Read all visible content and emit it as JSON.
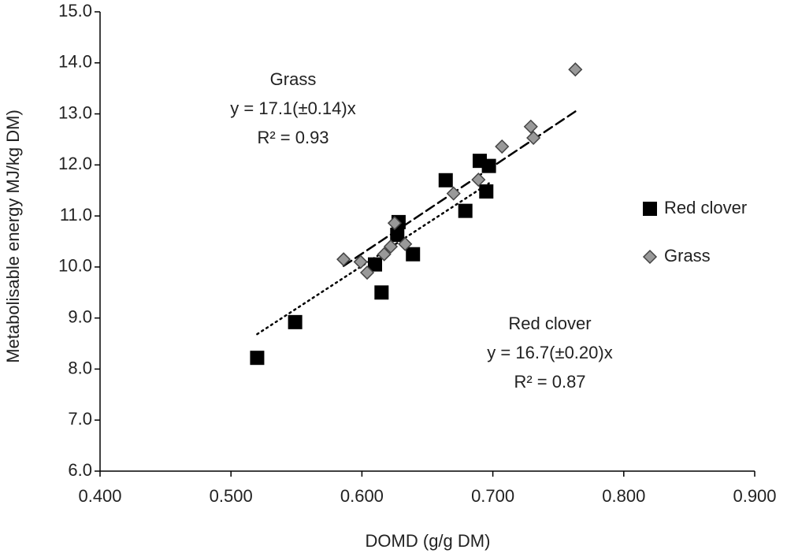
{
  "chart_data": {
    "type": "scatter",
    "x_label": "DOMD (g/g DM)",
    "y_label": "Metabolisable energy MJ/kg DM)",
    "xlim": [
      0.4,
      0.9
    ],
    "ylim": [
      6,
      15
    ],
    "xticks": [
      {
        "value": 0.4,
        "label": "0.400"
      },
      {
        "value": 0.5,
        "label": "0.500"
      },
      {
        "value": 0.6,
        "label": "0.600"
      },
      {
        "value": 0.7,
        "label": "0.700"
      },
      {
        "value": 0.8,
        "label": "0.800"
      },
      {
        "value": 0.9,
        "label": "0.900"
      }
    ],
    "yticks": [
      {
        "value": 6,
        "label": "6.0"
      },
      {
        "value": 7,
        "label": "7.0"
      },
      {
        "value": 8,
        "label": "8.0"
      },
      {
        "value": 9,
        "label": "9.0"
      },
      {
        "value": 10,
        "label": "10.0"
      },
      {
        "value": 11,
        "label": "11.0"
      },
      {
        "value": 12,
        "label": "12.0"
      },
      {
        "value": 13,
        "label": "13.0"
      },
      {
        "value": 14,
        "label": "14.0"
      },
      {
        "value": 15,
        "label": "15.0"
      }
    ],
    "grid": false,
    "series": [
      {
        "name": "Red clover",
        "marker": "square",
        "color": "#000000",
        "trend_style": "dotted",
        "slope": 16.7,
        "x": [
          0.52,
          0.549,
          0.61,
          0.615,
          0.628,
          0.627,
          0.639,
          0.664,
          0.679,
          0.69,
          0.695,
          0.697
        ],
        "values": [
          8.22,
          8.92,
          10.05,
          9.5,
          10.88,
          10.63,
          10.25,
          11.7,
          11.1,
          12.08,
          11.48,
          11.98
        ],
        "annotation": {
          "label": "Red clover",
          "equation": "y = 16.7(±0.20)x",
          "r2": "R² = 0.87"
        }
      },
      {
        "name": "Grass",
        "marker": "diamond",
        "color": "#999999",
        "trend_style": "dashed",
        "slope": 17.1,
        "x": [
          0.586,
          0.599,
          0.604,
          0.617,
          0.622,
          0.625,
          0.633,
          0.67,
          0.689,
          0.707,
          0.729,
          0.731,
          0.763
        ],
        "values": [
          10.15,
          10.1,
          9.89,
          10.25,
          10.4,
          10.86,
          10.45,
          11.44,
          11.71,
          12.36,
          12.75,
          12.53,
          13.87
        ],
        "annotation": {
          "label": "Grass",
          "equation": "y = 17.1(±0.14)x",
          "r2": "R² = 0.93"
        }
      }
    ]
  }
}
